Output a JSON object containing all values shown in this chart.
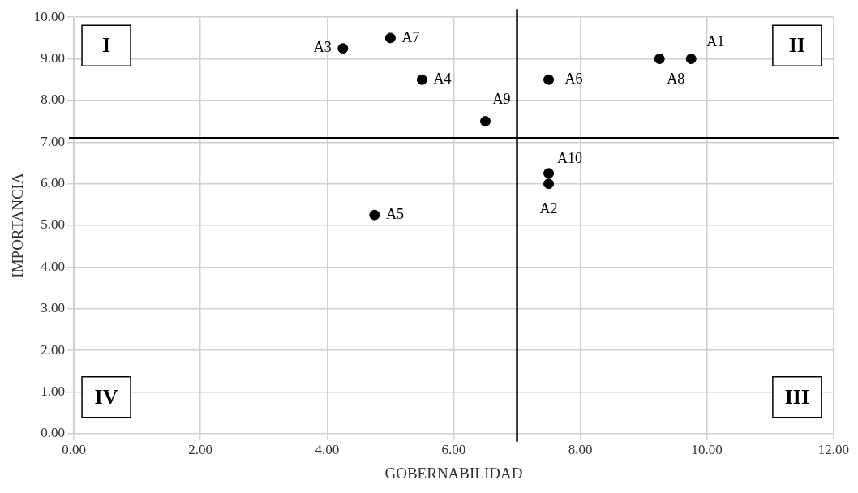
{
  "chart_data": {
    "type": "scatter",
    "xlabel": "GOBERNABILIDAD",
    "ylabel": "IMPORTANCIA",
    "x": [
      9.75,
      7.5,
      4.25,
      5.5,
      4.75,
      7.5,
      5.0,
      9.25,
      6.5,
      7.5
    ],
    "values": [
      9.0,
      6.0,
      9.25,
      8.5,
      5.25,
      8.5,
      9.5,
      9.0,
      7.5,
      6.25
    ],
    "value_labels": [
      "A1",
      "A2",
      "A3",
      "A4",
      "A5",
      "A6",
      "A7",
      "A8",
      "A9",
      "A10"
    ],
    "color": "#000000",
    "marker": "circle",
    "xlim": [
      0,
      12
    ],
    "ylim": [
      0,
      10
    ],
    "xticks": [
      {
        "value": 0,
        "label": "0.00"
      },
      {
        "value": 2,
        "label": "2.00"
      },
      {
        "value": 4,
        "label": "4.00"
      },
      {
        "value": 6,
        "label": "6.00"
      },
      {
        "value": 8,
        "label": "8.00"
      },
      {
        "value": 10,
        "label": "10.00"
      },
      {
        "value": 12,
        "label": "12.00"
      }
    ],
    "yticks": [
      {
        "value": 0,
        "label": "0.00"
      },
      {
        "value": 1,
        "label": "1.00"
      },
      {
        "value": 2,
        "label": "2.00"
      },
      {
        "value": 3,
        "label": "3.00"
      },
      {
        "value": 4,
        "label": "4.00"
      },
      {
        "value": 5,
        "label": "5.00"
      },
      {
        "value": 6,
        "label": "6.00"
      },
      {
        "value": 7,
        "label": "7.00"
      },
      {
        "value": 8,
        "label": "8.00"
      },
      {
        "value": 9,
        "label": "9.00"
      },
      {
        "value": 10,
        "label": "10.00"
      }
    ],
    "ref_lines": [
      {
        "axis": "x",
        "value": 7.0,
        "color": "#000000"
      },
      {
        "axis": "y",
        "value": 7.1,
        "color": "#000000"
      }
    ],
    "annotations": [
      "I",
      "II",
      "III",
      "IV"
    ],
    "grid": true,
    "legend": false
  }
}
